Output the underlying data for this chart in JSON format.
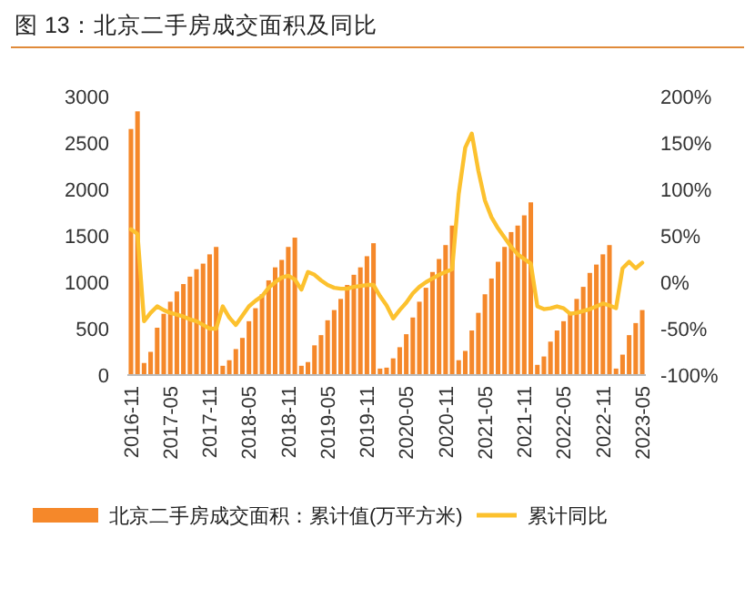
{
  "chart_data": {
    "type": "bar",
    "title": "图 13：北京二手房成交面积及同比",
    "categories": [
      "2016-11",
      null,
      null,
      null,
      null,
      null,
      "2017-05",
      null,
      null,
      null,
      null,
      null,
      "2017-11",
      null,
      null,
      null,
      null,
      null,
      "2018-05",
      null,
      null,
      null,
      null,
      null,
      "2018-11",
      null,
      null,
      null,
      null,
      null,
      "2019-05",
      null,
      null,
      null,
      null,
      null,
      "2019-11",
      null,
      null,
      null,
      null,
      null,
      "2020-05",
      null,
      null,
      null,
      null,
      null,
      "2020-11",
      null,
      null,
      null,
      null,
      null,
      "2021-05",
      null,
      null,
      null,
      null,
      null,
      "2021-11",
      null,
      null,
      null,
      null,
      null,
      "2022-05",
      null,
      null,
      null,
      null,
      null,
      "2022-11",
      null,
      null,
      null,
      null,
      null,
      "2023-05"
    ],
    "series": [
      {
        "name": "北京二手房成交面积：累计值(万平方米)",
        "color": "#f5882a",
        "values": [
          2650,
          2840,
          130,
          250,
          510,
          660,
          790,
          900,
          980,
          1060,
          1140,
          1200,
          1300,
          1380,
          100,
          160,
          280,
          400,
          580,
          720,
          870,
          1020,
          1160,
          1240,
          1380,
          1480,
          100,
          140,
          320,
          430,
          590,
          700,
          820,
          970,
          1080,
          1160,
          1280,
          1420,
          70,
          80,
          180,
          300,
          440,
          620,
          790,
          940,
          1110,
          1250,
          1400,
          1610,
          160,
          260,
          480,
          670,
          870,
          1040,
          1220,
          1380,
          1540,
          1610,
          1720,
          1860,
          110,
          200,
          360,
          480,
          580,
          680,
          820,
          950,
          1100,
          1190,
          1300,
          1400,
          70,
          220,
          430,
          560,
          700
        ]
      },
      {
        "name": "累计同比",
        "type": "line",
        "axis": "y2",
        "color": "#fcc12e",
        "values": [
          57,
          52,
          -42,
          -33,
          -26,
          -30,
          -33,
          -35,
          -37,
          -40,
          -42,
          -46,
          -50,
          -50,
          -26,
          -38,
          -46,
          -36,
          -26,
          -20,
          -15,
          -6,
          0,
          5,
          7,
          3,
          -8,
          11,
          8,
          2,
          -3,
          -6,
          -7,
          -7,
          -5,
          -4,
          -3,
          -3,
          -15,
          -25,
          -39,
          -30,
          -22,
          -12,
          -5,
          0,
          4,
          8,
          11,
          14,
          95,
          145,
          160,
          120,
          88,
          70,
          58,
          48,
          38,
          30,
          25,
          20,
          -26,
          -29,
          -28,
          -26,
          -28,
          -34,
          -33,
          -31,
          -29,
          -26,
          -23,
          -25,
          -28,
          15,
          22,
          15,
          21
        ]
      }
    ],
    "ylim": [
      0,
      3000
    ],
    "yticks": [
      0,
      500,
      1000,
      1500,
      2000,
      2500,
      3000
    ],
    "y2lim": [
      -100,
      200
    ],
    "y2ticks": [
      {
        "value": -100,
        "label": "-100%"
      },
      {
        "value": -50,
        "label": "-50%"
      },
      {
        "value": 0,
        "label": "0%"
      },
      {
        "value": 50,
        "label": "50%"
      },
      {
        "value": 100,
        "label": "100%"
      },
      {
        "value": 150,
        "label": "150%"
      },
      {
        "value": 200,
        "label": "200%"
      }
    ],
    "grid": false,
    "legend": "bottom"
  }
}
